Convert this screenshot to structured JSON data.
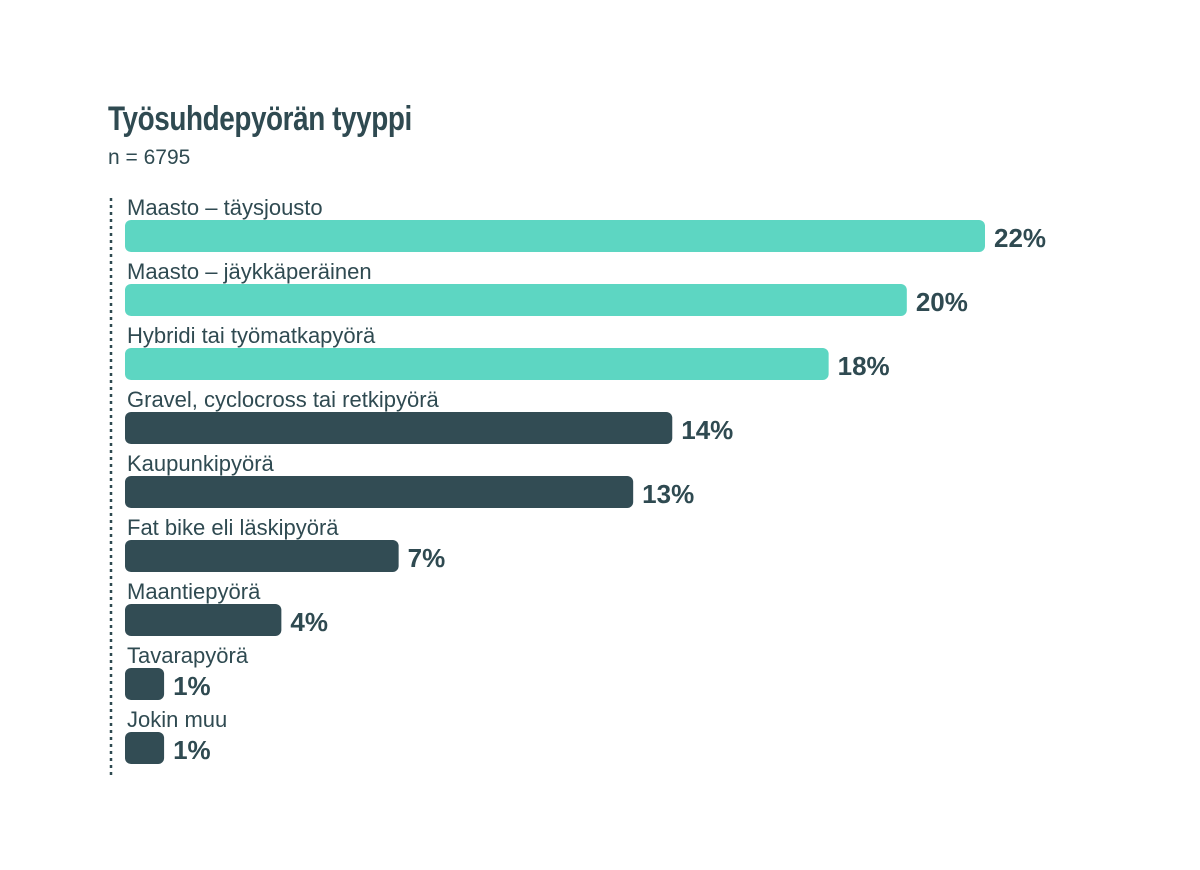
{
  "chart": {
    "title": "Työsuhdepyörän tyyppi",
    "subtitle": "n = 6795"
  },
  "colors": {
    "highlight": "#5dd6c2",
    "default": "#324c54",
    "text": "#2f4a51",
    "axis": "#2f4a51"
  },
  "chart_data": {
    "type": "bar",
    "orientation": "horizontal",
    "title": "Työsuhdepyörän tyyppi",
    "subtitle": "n = 6795",
    "unit": "%",
    "xlim": [
      0,
      22
    ],
    "grid": false,
    "categories": [
      "Maasto – täysjousto",
      "Maasto – jäykkäperäinen",
      "Hybridi tai työmatkapyörä",
      "Gravel, cyclocross tai retkipyörä",
      "Kaupunkipyörä",
      "Fat bike eli läskipyörä",
      "Maantiepyörä",
      "Tavarapyörä",
      "Jokin muu"
    ],
    "values": [
      22,
      20,
      18,
      14,
      13,
      7,
      4,
      1,
      1
    ],
    "value_labels": [
      "22%",
      "20%",
      "18%",
      "14%",
      "13%",
      "7%",
      "4%",
      "1%",
      "1%"
    ],
    "highlighted": [
      true,
      true,
      true,
      false,
      false,
      false,
      false,
      false,
      false
    ]
  }
}
